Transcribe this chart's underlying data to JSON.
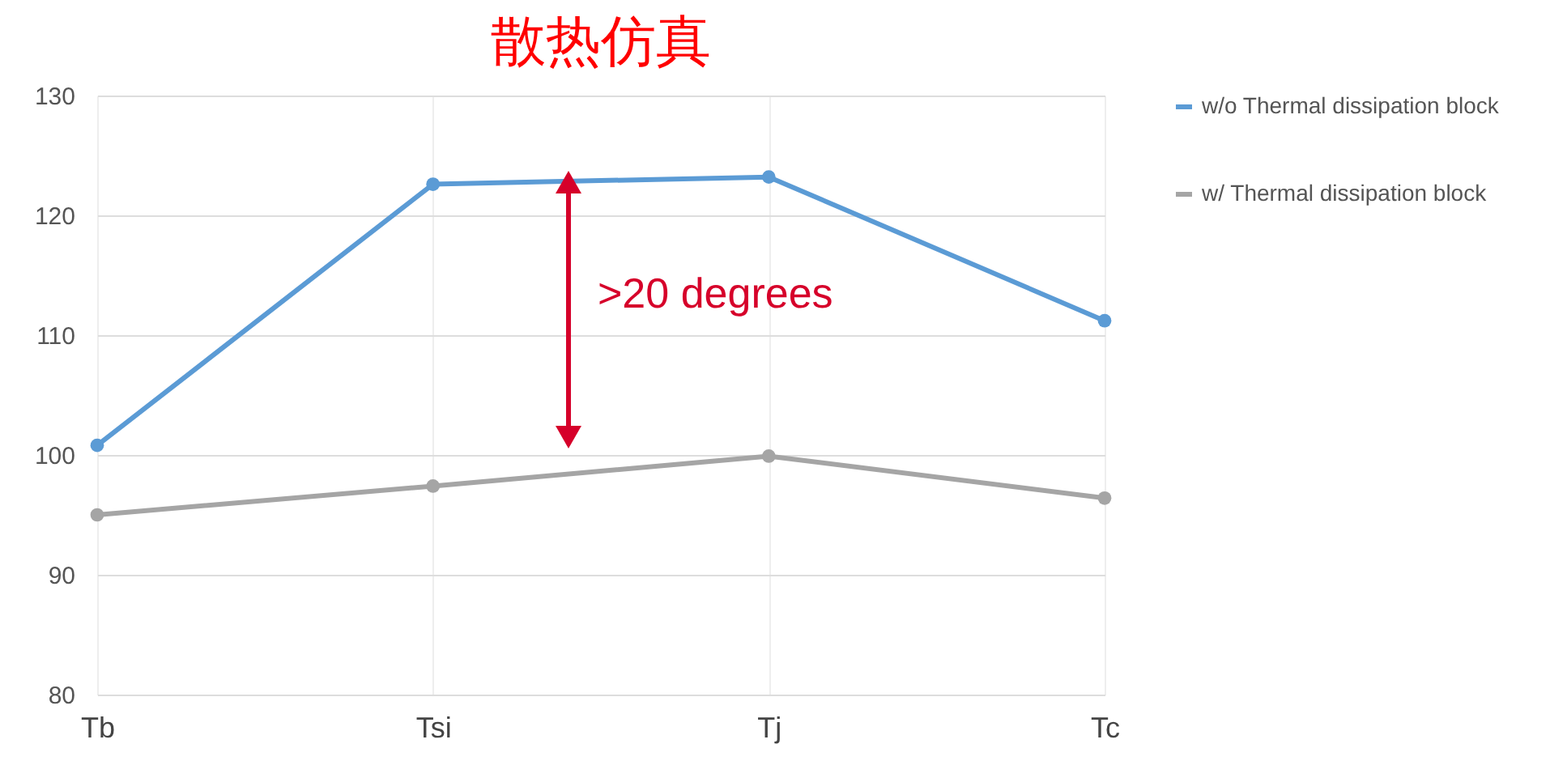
{
  "chart_data": {
    "type": "line",
    "title": "散热仿真",
    "categories": [
      "Tb",
      "Tsi",
      "Tj",
      "Tc"
    ],
    "series": [
      {
        "name": "w/o Thermal dissipation block",
        "color": "#5b9bd5",
        "values": [
          100.8,
          122.6,
          123.2,
          111.2
        ]
      },
      {
        "name": "w/ Thermal dissipation block",
        "color": "#a5a5a5",
        "values": [
          95.0,
          97.4,
          99.9,
          96.4
        ]
      }
    ],
    "ylim": [
      80,
      130
    ],
    "yticks": [
      80,
      90,
      100,
      110,
      120,
      130
    ],
    "grid": true,
    "legend": "right",
    "marker": "circle",
    "annotations": [
      ">20 degrees"
    ]
  }
}
